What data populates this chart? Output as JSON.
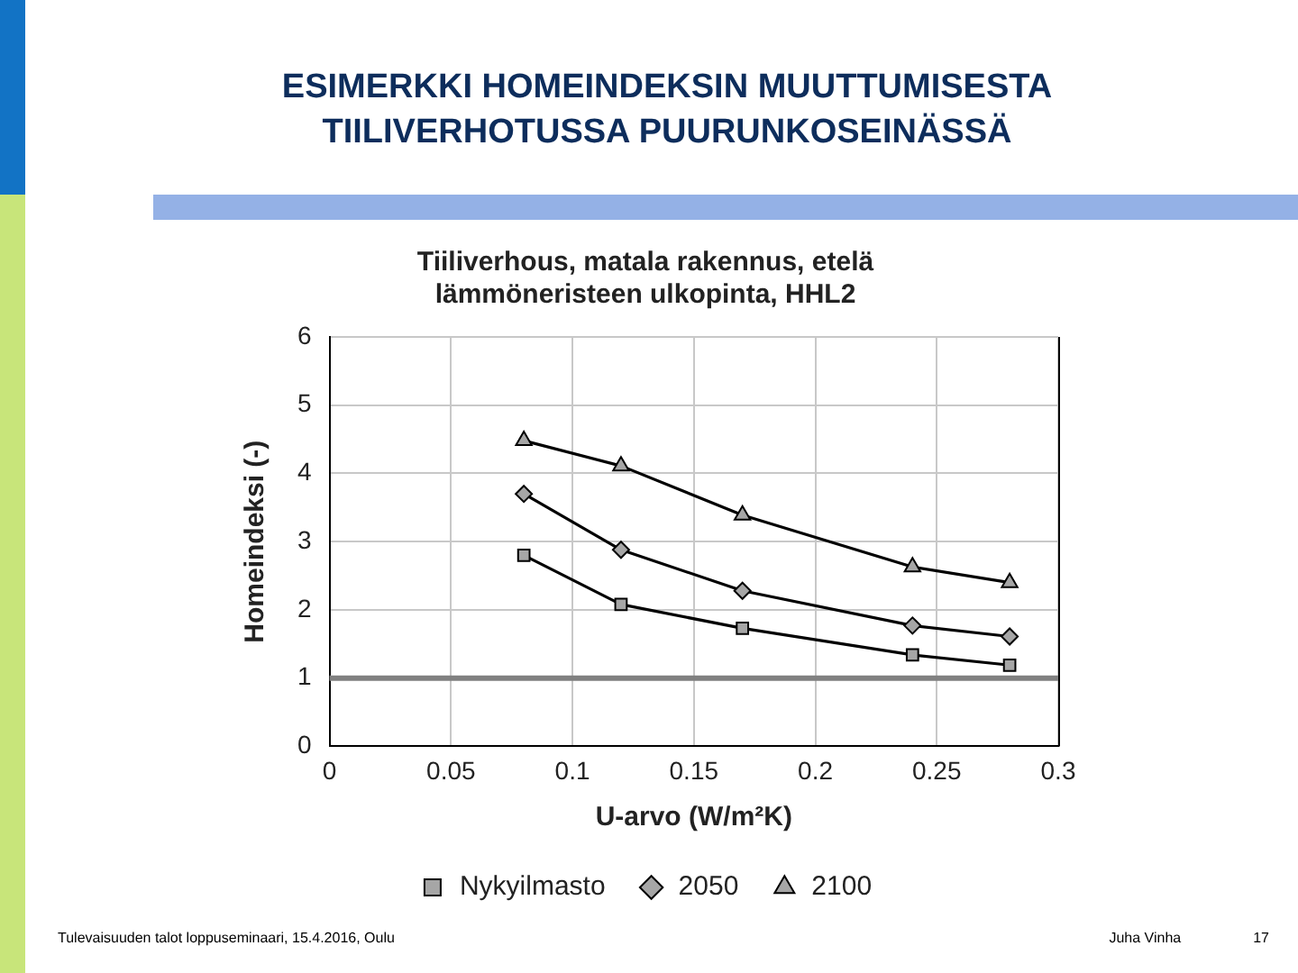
{
  "chart_data": {
    "type": "line",
    "title": "ESIMERKKI HOMEINDEKSIN MUUTTUMISESTA TIILIVERHOTUSSA PUURUNKOSEINÄSSÄ",
    "subtitle": "Tiiliverhous, matala rakennus, etelä\nlämmöneristeen ulkopinta, HHL2",
    "xlabel": "U-arvo (W/m²K)",
    "ylabel": "Homeindeksi (-)",
    "x": [
      0.08,
      0.12,
      0.17,
      0.24,
      0.28
    ],
    "series": [
      {
        "name": "Nykyilmasto",
        "color": "#000000",
        "marker": "square",
        "values": [
          2.8,
          2.08,
          1.73,
          1.34,
          1.19
        ]
      },
      {
        "name": "2050",
        "color": "#000000",
        "marker": "diamond",
        "values": [
          3.7,
          2.88,
          2.28,
          1.77,
          1.61
        ]
      },
      {
        "name": "2100",
        "color": "#000000",
        "marker": "triangle",
        "values": [
          4.48,
          4.11,
          3.39,
          2.63,
          2.4
        ]
      }
    ],
    "xlim": [
      0,
      0.3
    ],
    "xticks": [
      0,
      0.05,
      0.1,
      0.15,
      0.2,
      0.25,
      0.3
    ],
    "ylim": [
      0,
      6
    ],
    "yticks": [
      0,
      1,
      2,
      3,
      4,
      5,
      6
    ],
    "ref_lines": [
      {
        "axis": "y",
        "value": 1,
        "color": "#808080"
      }
    ],
    "grid": true,
    "legend": "bottom",
    "annotations": [
      "Tulevaisuuden talot loppuseminaari, 15.4.2016, Oulu",
      "Juha Vinha",
      "17"
    ]
  }
}
